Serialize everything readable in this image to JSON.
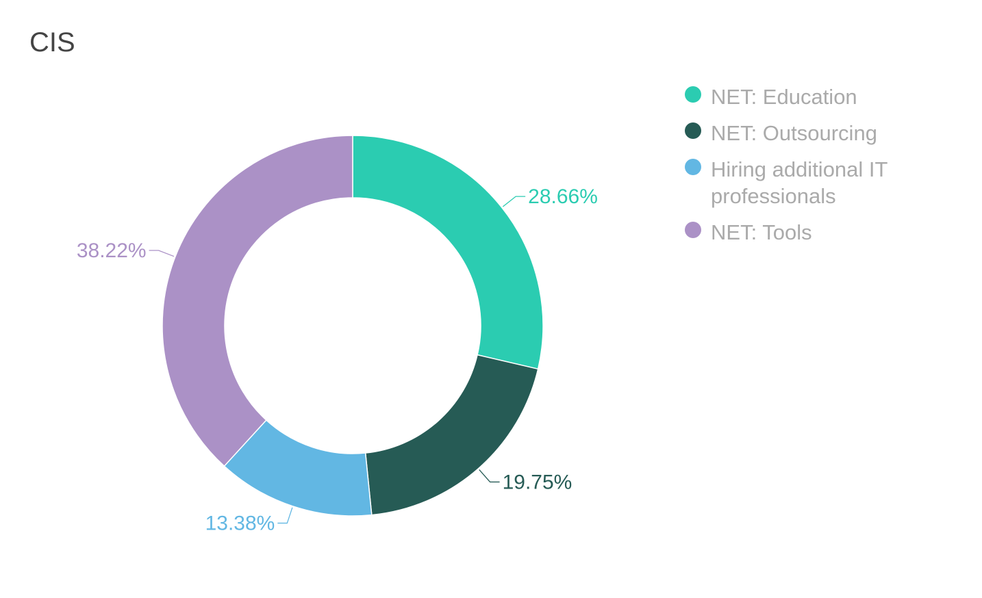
{
  "chart_data": {
    "type": "pie",
    "title": "CIS",
    "categories": [
      "NET: Education",
      "NET: Outsourcing",
      "Hiring additional IT professionals",
      "NET: Tools"
    ],
    "values": [
      28.66,
      19.75,
      13.38,
      38.22
    ],
    "labels": [
      "28.66%",
      "19.75%",
      "13.38%",
      "38.22%"
    ],
    "colors": [
      "#2bccb1",
      "#265b55",
      "#62b7e3",
      "#ab91c6"
    ],
    "legend_position": "right"
  }
}
